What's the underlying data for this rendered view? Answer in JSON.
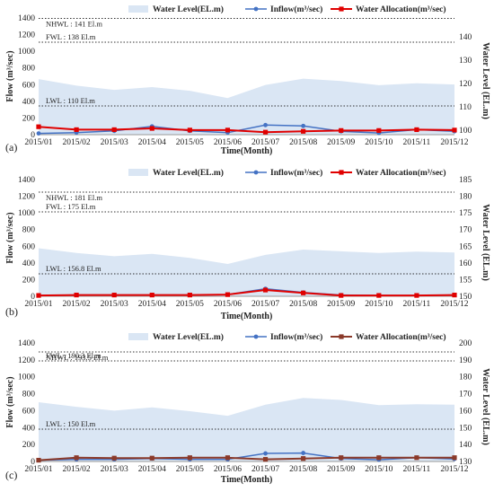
{
  "chart_data": [
    {
      "type": "area+line",
      "panel_label": "(a)",
      "categories": [
        "2015/01",
        "2015/02",
        "2015/03",
        "2015/04",
        "2015/05",
        "2015/06",
        "2015/07",
        "2015/08",
        "2015/09",
        "2015/10",
        "2015/11",
        "2015/12"
      ],
      "xlabel": "Time(Month)",
      "ylabel": "Flow (m³/sec)",
      "y2label": "Water Level (EL.m)",
      "ylim": [
        0,
        1400
      ],
      "yticks": [
        0,
        200,
        400,
        600,
        800,
        1000,
        1200,
        1400
      ],
      "y2lim": [
        98,
        148
      ],
      "y2ticks": [
        100,
        110,
        120,
        130,
        140
      ],
      "legend": [
        "Water Level(EL.m)",
        "Inflow(m³/sec)",
        "Water Allocation(m³/sec)"
      ],
      "series": [
        {
          "name": "Water Level(EL.m)",
          "axis": "right",
          "kind": "area",
          "color": "#dae6f4",
          "values": [
            121.8,
            119,
            117.2,
            118.4,
            116.8,
            113.7,
            119.3,
            122,
            121,
            119.2,
            120,
            119.5
          ]
        },
        {
          "name": "Inflow(m³/sec)",
          "axis": "left",
          "kind": "line",
          "color": "#4472c4",
          "values": [
            15,
            25,
            45,
            100,
            45,
            25,
            115,
            105,
            40,
            20,
            60,
            40
          ]
        },
        {
          "name": "Water Allocation(m³/sec)",
          "axis": "left",
          "kind": "line",
          "color": "#e00000",
          "values": [
            95,
            60,
            60,
            75,
            55,
            55,
            30,
            40,
            50,
            50,
            60,
            55
          ]
        }
      ],
      "reference_lines": [
        {
          "label": "NHWL : 141 El.m",
          "value": 141
        },
        {
          "label": "FWL : 138 El.m",
          "value": 138
        },
        {
          "label": "LWL : 110 El.m",
          "value": 110
        }
      ]
    },
    {
      "type": "area+line",
      "panel_label": "(b)",
      "categories": [
        "2015/01",
        "2015/02",
        "2015/03",
        "2015/04",
        "2015/05",
        "2015/06",
        "2015/07",
        "2015/08",
        "2015/09",
        "2015/10",
        "2015/11",
        "2015/12"
      ],
      "xlabel": "Time(Month)",
      "ylabel": "Flow (m³/sec)",
      "y2label": "Water Level (EL.m)",
      "ylim": [
        0,
        1400
      ],
      "yticks": [
        0,
        200,
        400,
        600,
        800,
        1000,
        1200,
        1400
      ],
      "y2lim": [
        150,
        185
      ],
      "y2ticks": [
        150,
        155,
        160,
        165,
        170,
        175,
        180,
        185
      ],
      "legend": [
        "Water Level(EL.m)",
        "Inflow(m³/sec)",
        "Water Allocation(m³/sec)"
      ],
      "series": [
        {
          "name": "Water Level(EL.m)",
          "axis": "right",
          "kind": "area",
          "color": "#dae6f4",
          "values": [
            164.4,
            163,
            162,
            162.7,
            161.5,
            159.7,
            162.4,
            164,
            163.5,
            163,
            163.4,
            163.1
          ]
        },
        {
          "name": "Inflow(m³/sec)",
          "axis": "left",
          "kind": "line",
          "color": "#4472c4",
          "values": [
            10,
            15,
            15,
            15,
            15,
            20,
            90,
            45,
            15,
            10,
            10,
            15
          ]
        },
        {
          "name": "Water Allocation(m³/sec)",
          "axis": "left",
          "kind": "line",
          "color": "#e00000",
          "values": [
            10,
            15,
            15,
            15,
            15,
            20,
            75,
            40,
            10,
            10,
            10,
            15
          ]
        }
      ],
      "reference_lines": [
        {
          "label": "NHWL : 181 El.m",
          "value": 181
        },
        {
          "label": "FWL : 175 El.m",
          "value": 175
        },
        {
          "label": "LWL : 156.8 El.m",
          "value": 156.8
        }
      ]
    },
    {
      "type": "area+line",
      "panel_label": "(c)",
      "categories": [
        "2015/01",
        "2015/02",
        "2015/03",
        "2015/04",
        "2015/05",
        "2015/06",
        "2015/07",
        "2015/08",
        "2015/09",
        "2015/10",
        "2015/11",
        "2015/12"
      ],
      "xlabel": "Time(Month)",
      "ylabel": "Flow (m³/sec)",
      "y2label": "Water Level (EL.m)",
      "ylim": [
        0,
        1400
      ],
      "yticks": [
        0,
        200,
        400,
        600,
        800,
        1000,
        1200,
        1400
      ],
      "y2lim": [
        130,
        200
      ],
      "y2ticks": [
        130,
        140,
        150,
        160,
        170,
        180,
        190,
        200
      ],
      "legend": [
        "Water Level(EL.m)",
        "Inflow(m³/sec)",
        "Water Allocation(m³/sec)"
      ],
      "series": [
        {
          "name": "Water Level(EL.m)",
          "axis": "right",
          "kind": "area",
          "color": "#dae6f4",
          "values": [
            165,
            162.3,
            160,
            162,
            159.7,
            157,
            163.5,
            167.5,
            166.3,
            163.3,
            163.8,
            163.5
          ]
        },
        {
          "name": "Inflow(m³/sec)",
          "axis": "left",
          "kind": "line",
          "color": "#4472c4",
          "values": [
            15,
            25,
            25,
            35,
            25,
            25,
            95,
            100,
            35,
            20,
            45,
            30
          ]
        },
        {
          "name": "Water Allocation(m³/sec)",
          "axis": "left",
          "kind": "line",
          "color": "#8b3a2a",
          "values": [
            15,
            45,
            40,
            40,
            45,
            45,
            25,
            35,
            45,
            45,
            45,
            45
          ]
        }
      ],
      "reference_lines": [
        {
          "label": "NHWL : 193.5 El.m",
          "value": 193.5
        },
        {
          "label": "FWL : 190.3 El.m",
          "value": 190.3
        },
        {
          "label": "LWL : 150 El.m",
          "value": 150
        }
      ]
    }
  ]
}
